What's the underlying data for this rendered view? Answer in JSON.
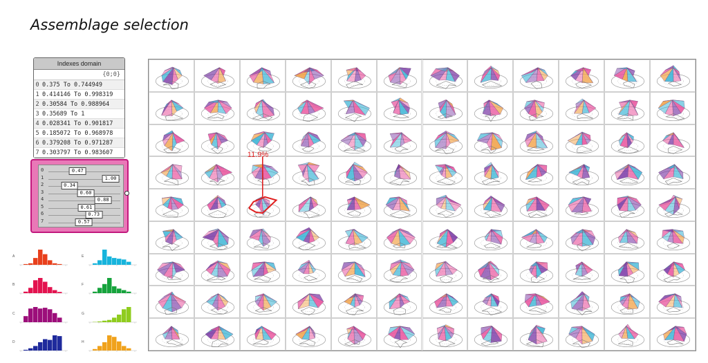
{
  "title": "Assemblage selection",
  "indexes_panel": {
    "header": "Indexes domain",
    "branch": "{0;0}",
    "rows": [
      {
        "index": "0",
        "value": "0.375 To 0.744949"
      },
      {
        "index": "1",
        "value": "0.414146 To 0.998319"
      },
      {
        "index": "2",
        "value": "0.30584 To 0.988964"
      },
      {
        "index": "3",
        "value": "0.35689 To 1"
      },
      {
        "index": "4",
        "value": "0.028341 To 0.901817"
      },
      {
        "index": "5",
        "value": "0.185072 To 0.968978"
      },
      {
        "index": "6",
        "value": "0.379208 To 0.971287"
      },
      {
        "index": "7",
        "value": "0.303797 To 0.983607"
      }
    ]
  },
  "slider_panel": {
    "sliders": [
      {
        "index": "0",
        "label": "0.47",
        "value": 0.47
      },
      {
        "index": "1",
        "label": "1.00",
        "value": 1.0
      },
      {
        "index": "2",
        "label": "0.34",
        "value": 0.34
      },
      {
        "index": "3",
        "label": "0.60",
        "value": 0.6
      },
      {
        "index": "4",
        "label": "0.88",
        "value": 0.88
      },
      {
        "index": "5",
        "label": "0.61",
        "value": 0.61
      },
      {
        "index": "6",
        "label": "0.73",
        "value": 0.73
      },
      {
        "index": "7",
        "label": "0.57",
        "value": 0.57
      }
    ]
  },
  "histograms": [
    {
      "label": "A",
      "color": "#e8401c",
      "bars": [
        0.05,
        0.1,
        0.45,
        1.0,
        0.7,
        0.3,
        0.1,
        0.05
      ]
    },
    {
      "label": "B",
      "color": "#e3134f",
      "bars": [
        0.1,
        0.35,
        0.85,
        1.0,
        0.75,
        0.4,
        0.2,
        0.08
      ]
    },
    {
      "label": "C",
      "color": "#9c0e7a",
      "bars": [
        0.4,
        0.9,
        1.0,
        0.9,
        0.95,
        0.85,
        0.6,
        0.3
      ]
    },
    {
      "label": "D",
      "color": "#1f2a9c",
      "bars": [
        0.05,
        0.15,
        0.3,
        0.55,
        0.75,
        0.7,
        1.0,
        0.95
      ]
    },
    {
      "label": "E",
      "color": "#17b4dc",
      "bars": [
        0.1,
        0.3,
        1.0,
        0.55,
        0.45,
        0.4,
        0.35,
        0.2
      ]
    },
    {
      "label": "F",
      "color": "#16a33c",
      "bars": [
        0.1,
        0.35,
        0.6,
        1.0,
        0.45,
        0.3,
        0.2,
        0.1
      ]
    },
    {
      "label": "G",
      "color": "#8fcc1e",
      "bars": [
        0.02,
        0.05,
        0.1,
        0.15,
        0.3,
        0.5,
        0.85,
        1.0
      ]
    },
    {
      "label": "H",
      "color": "#f0a21c",
      "bars": [
        0.1,
        0.3,
        0.55,
        1.0,
        0.9,
        0.6,
        0.3,
        0.15
      ]
    }
  ],
  "grid": {
    "rows": 9,
    "cols": 12,
    "colors": {
      "pink": "#e9559e",
      "purple": "#7b3aa6",
      "cyan": "#3fb6d6",
      "orange": "#f2a34a"
    }
  },
  "callout": {
    "label": "11.9%",
    "color": "#e02020",
    "row": 4,
    "col": 2
  }
}
